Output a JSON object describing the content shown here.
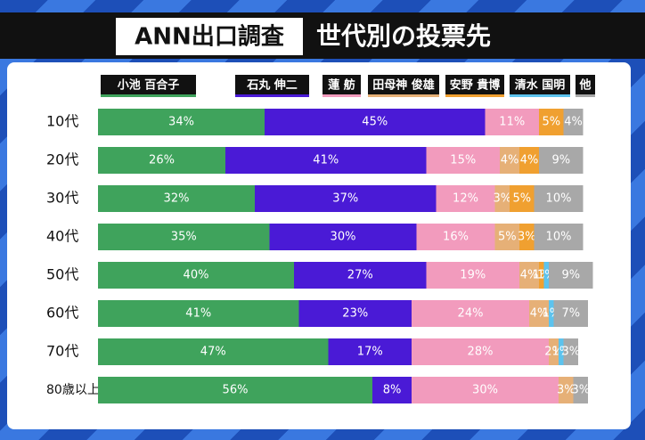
{
  "chart_data": {
    "type": "bar",
    "orientation": "horizontal",
    "stacked": true,
    "title": "ANN出口調査",
    "subtitle": "世代別の投票先",
    "categories": [
      "10代",
      "20代",
      "30代",
      "40代",
      "50代",
      "60代",
      "70代",
      "80歳以上"
    ],
    "xlim": [
      0,
      100
    ],
    "series": [
      {
        "name": "小池 百合子",
        "color": "#3fa35c",
        "values": [
          34,
          26,
          32,
          35,
          40,
          41,
          47,
          56
        ],
        "value_labels": [
          "34%",
          "26%",
          "32%",
          "35%",
          "40%",
          "41%",
          "47%",
          "56%"
        ]
      },
      {
        "name": "石丸 伸二",
        "color": "#4a1ad6",
        "values": [
          45,
          41,
          37,
          30,
          27,
          23,
          17,
          8
        ],
        "value_labels": [
          "45%",
          "41%",
          "37%",
          "30%",
          "27%",
          "23%",
          "17%",
          "8%"
        ]
      },
      {
        "name": "蓮 舫",
        "color": "#f29bbd",
        "values": [
          11,
          15,
          12,
          16,
          19,
          24,
          28,
          30
        ],
        "value_labels": [
          "11%",
          "15%",
          "12%",
          "16%",
          "19%",
          "24%",
          "28%",
          "30%"
        ]
      },
      {
        "name": "田母神 俊雄",
        "color": "#e6b077",
        "values": [
          null,
          4,
          3,
          5,
          4,
          4,
          2,
          3
        ],
        "value_labels": [
          null,
          "4%",
          "3%",
          "5%",
          "4%",
          "4%",
          "2%",
          "3%"
        ]
      },
      {
        "name": "安野 貴博",
        "color": "#f0a030",
        "values": [
          5,
          4,
          5,
          3,
          1,
          null,
          null,
          null
        ],
        "value_labels": [
          "5%",
          "4%",
          "5%",
          "3%",
          "1%",
          null,
          null,
          null
        ]
      },
      {
        "name": "清水 国明",
        "color": "#5cc3ee",
        "values": [
          null,
          null,
          null,
          null,
          1,
          1,
          1,
          null
        ],
        "value_labels": [
          null,
          null,
          null,
          null,
          "1%",
          "1%",
          "1%",
          null
        ]
      },
      {
        "name": "他",
        "color": "#a8a8a8",
        "values": [
          4,
          9,
          10,
          10,
          9,
          7,
          3,
          3
        ],
        "value_labels": [
          "4%",
          "9%",
          "10%",
          "10%",
          "9%",
          "7%",
          "3%",
          "3%"
        ]
      }
    ]
  }
}
